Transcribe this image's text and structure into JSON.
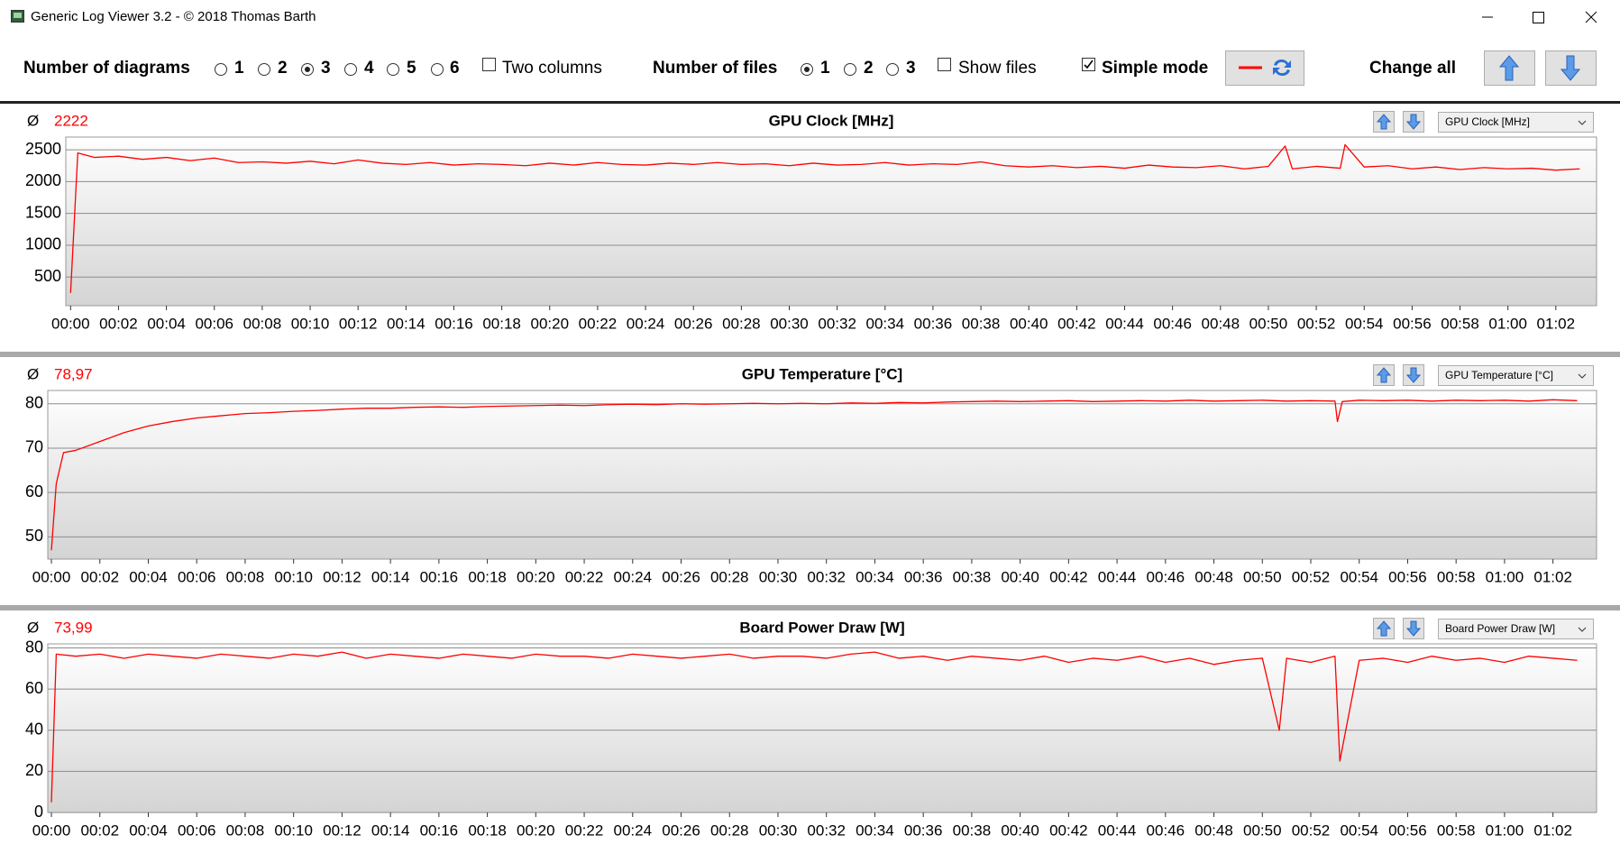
{
  "window": {
    "title": "Generic Log Viewer 3.2 - © 2018 Thomas Barth"
  },
  "toolbar": {
    "diagrams_label": "Number of diagrams",
    "diagram_options": [
      {
        "label": "1",
        "checked": false
      },
      {
        "label": "2",
        "checked": false
      },
      {
        "label": "3",
        "checked": true
      },
      {
        "label": "4",
        "checked": false
      },
      {
        "label": "5",
        "checked": false
      },
      {
        "label": "6",
        "checked": false
      }
    ],
    "two_columns": {
      "label": "Two columns",
      "checked": false
    },
    "files_label": "Number of files",
    "file_options": [
      {
        "label": "1",
        "checked": true
      },
      {
        "label": "2",
        "checked": false
      },
      {
        "label": "3",
        "checked": false
      }
    ],
    "show_files": {
      "label": "Show files",
      "checked": false
    },
    "simple_mode": {
      "label": "Simple mode",
      "checked": true
    },
    "change_all": "Change all"
  },
  "chart_data": [
    {
      "type": "line",
      "title": "GPU Clock [MHz]",
      "avg_symbol": "Ø",
      "average": "2222",
      "color": "#ff0000",
      "grid": true,
      "x": [
        0,
        0.3,
        1,
        2,
        3,
        4,
        5,
        6,
        7,
        8,
        9,
        10,
        11,
        12,
        13,
        14,
        15,
        16,
        17,
        18,
        19,
        20,
        21,
        22,
        23,
        24,
        25,
        26,
        27,
        28,
        29,
        30,
        31,
        32,
        33,
        34,
        35,
        36,
        37,
        38,
        39,
        40,
        41,
        42,
        43,
        44,
        45,
        46,
        47,
        48,
        49,
        50,
        50.7,
        51,
        52,
        53,
        53.2,
        54,
        55,
        56,
        57,
        58,
        59,
        60,
        61,
        62,
        63
      ],
      "values": [
        250,
        2450,
        2380,
        2400,
        2350,
        2380,
        2330,
        2370,
        2300,
        2310,
        2290,
        2320,
        2280,
        2340,
        2290,
        2270,
        2300,
        2260,
        2280,
        2270,
        2250,
        2290,
        2260,
        2300,
        2270,
        2260,
        2290,
        2270,
        2300,
        2270,
        2280,
        2250,
        2290,
        2260,
        2270,
        2300,
        2260,
        2280,
        2270,
        2310,
        2250,
        2230,
        2250,
        2220,
        2240,
        2210,
        2260,
        2230,
        2220,
        2250,
        2200,
        2240,
        2560,
        2200,
        2240,
        2210,
        2580,
        2230,
        2250,
        2200,
        2230,
        2190,
        2220,
        2200,
        2210,
        2180,
        2200
      ],
      "xlim": [
        -0.2,
        63.7
      ],
      "ylim": [
        50,
        2700
      ],
      "yticks": [
        500,
        1000,
        1500,
        2000,
        2500
      ],
      "xticks": [
        {
          "value": 0,
          "label": "00:00"
        },
        {
          "value": 2,
          "label": "00:02"
        },
        {
          "value": 4,
          "label": "00:04"
        },
        {
          "value": 6,
          "label": "00:06"
        },
        {
          "value": 8,
          "label": "00:08"
        },
        {
          "value": 10,
          "label": "00:10"
        },
        {
          "value": 12,
          "label": "00:12"
        },
        {
          "value": 14,
          "label": "00:14"
        },
        {
          "value": 16,
          "label": "00:16"
        },
        {
          "value": 18,
          "label": "00:18"
        },
        {
          "value": 20,
          "label": "00:20"
        },
        {
          "value": 22,
          "label": "00:22"
        },
        {
          "value": 24,
          "label": "00:24"
        },
        {
          "value": 26,
          "label": "00:26"
        },
        {
          "value": 28,
          "label": "00:28"
        },
        {
          "value": 30,
          "label": "00:30"
        },
        {
          "value": 32,
          "label": "00:32"
        },
        {
          "value": 34,
          "label": "00:34"
        },
        {
          "value": 36,
          "label": "00:36"
        },
        {
          "value": 38,
          "label": "00:38"
        },
        {
          "value": 40,
          "label": "00:40"
        },
        {
          "value": 42,
          "label": "00:42"
        },
        {
          "value": 44,
          "label": "00:44"
        },
        {
          "value": 46,
          "label": "00:46"
        },
        {
          "value": 48,
          "label": "00:48"
        },
        {
          "value": 50,
          "label": "00:50"
        },
        {
          "value": 52,
          "label": "00:52"
        },
        {
          "value": 54,
          "label": "00:54"
        },
        {
          "value": 56,
          "label": "00:56"
        },
        {
          "value": 58,
          "label": "00:58"
        },
        {
          "value": 60,
          "label": "01:00"
        },
        {
          "value": 62,
          "label": "01:02"
        }
      ]
    },
    {
      "type": "line",
      "title": "GPU Temperature [°C]",
      "avg_symbol": "Ø",
      "average": "78,97",
      "color": "#ff0000",
      "grid": true,
      "x": [
        0,
        0.2,
        0.5,
        1,
        2,
        3,
        4,
        5,
        6,
        7,
        8,
        9,
        10,
        11,
        12,
        13,
        14,
        15,
        16,
        17,
        18,
        19,
        20,
        21,
        22,
        23,
        24,
        25,
        26,
        27,
        28,
        29,
        30,
        31,
        32,
        33,
        34,
        35,
        36,
        37,
        38,
        39,
        40,
        41,
        42,
        43,
        44,
        45,
        46,
        47,
        48,
        49,
        50,
        51,
        52,
        53,
        53.1,
        53.3,
        54,
        55,
        56,
        57,
        58,
        59,
        60,
        61,
        62,
        63
      ],
      "values": [
        47,
        62,
        69,
        69.5,
        71.5,
        73.5,
        75,
        76,
        76.8,
        77.3,
        77.8,
        78,
        78.3,
        78.5,
        78.8,
        79,
        79,
        79.2,
        79.3,
        79.2,
        79.4,
        79.5,
        79.6,
        79.7,
        79.6,
        79.8,
        79.9,
        79.8,
        80,
        79.9,
        80,
        80.1,
        80,
        80.1,
        80,
        80.2,
        80.1,
        80.3,
        80.2,
        80.4,
        80.5,
        80.6,
        80.5,
        80.6,
        80.7,
        80.5,
        80.6,
        80.7,
        80.6,
        80.8,
        80.6,
        80.7,
        80.8,
        80.6,
        80.7,
        80.6,
        76,
        80.5,
        80.8,
        80.7,
        80.8,
        80.6,
        80.8,
        80.7,
        80.8,
        80.6,
        80.9,
        80.7
      ],
      "xlim": [
        -0.15,
        63.8
      ],
      "ylim": [
        45,
        83
      ],
      "yticks": [
        50,
        60,
        70,
        80
      ],
      "xticks": [
        {
          "value": 0,
          "label": "00:00"
        },
        {
          "value": 2,
          "label": "00:02"
        },
        {
          "value": 4,
          "label": "00:04"
        },
        {
          "value": 6,
          "label": "00:06"
        },
        {
          "value": 8,
          "label": "00:08"
        },
        {
          "value": 10,
          "label": "00:10"
        },
        {
          "value": 12,
          "label": "00:12"
        },
        {
          "value": 14,
          "label": "00:14"
        },
        {
          "value": 16,
          "label": "00:16"
        },
        {
          "value": 18,
          "label": "00:18"
        },
        {
          "value": 20,
          "label": "00:20"
        },
        {
          "value": 22,
          "label": "00:22"
        },
        {
          "value": 24,
          "label": "00:24"
        },
        {
          "value": 26,
          "label": "00:26"
        },
        {
          "value": 28,
          "label": "00:28"
        },
        {
          "value": 30,
          "label": "00:30"
        },
        {
          "value": 32,
          "label": "00:32"
        },
        {
          "value": 34,
          "label": "00:34"
        },
        {
          "value": 36,
          "label": "00:36"
        },
        {
          "value": 38,
          "label": "00:38"
        },
        {
          "value": 40,
          "label": "00:40"
        },
        {
          "value": 42,
          "label": "00:42"
        },
        {
          "value": 44,
          "label": "00:44"
        },
        {
          "value": 46,
          "label": "00:46"
        },
        {
          "value": 48,
          "label": "00:48"
        },
        {
          "value": 50,
          "label": "00:50"
        },
        {
          "value": 52,
          "label": "00:52"
        },
        {
          "value": 54,
          "label": "00:54"
        },
        {
          "value": 56,
          "label": "00:56"
        },
        {
          "value": 58,
          "label": "00:58"
        },
        {
          "value": 60,
          "label": "01:00"
        },
        {
          "value": 62,
          "label": "01:02"
        }
      ]
    },
    {
      "type": "line",
      "title": "Board Power Draw [W]",
      "avg_symbol": "Ø",
      "average": "73,99",
      "color": "#ff0000",
      "grid": true,
      "x": [
        0,
        0.2,
        1,
        2,
        3,
        4,
        5,
        6,
        7,
        8,
        9,
        10,
        11,
        12,
        13,
        14,
        15,
        16,
        17,
        18,
        19,
        20,
        21,
        22,
        23,
        24,
        25,
        26,
        27,
        28,
        29,
        30,
        31,
        32,
        33,
        34,
        35,
        36,
        37,
        38,
        39,
        40,
        41,
        42,
        43,
        44,
        45,
        46,
        47,
        48,
        49,
        50,
        50.7,
        51,
        52,
        53,
        53.2,
        54,
        55,
        56,
        57,
        58,
        59,
        60,
        61,
        62,
        63
      ],
      "values": [
        5,
        77,
        76,
        77,
        75,
        77,
        76,
        75,
        77,
        76,
        75,
        77,
        76,
        78,
        75,
        77,
        76,
        75,
        77,
        76,
        75,
        77,
        76,
        76,
        75,
        77,
        76,
        75,
        76,
        77,
        75,
        76,
        76,
        75,
        77,
        78,
        75,
        76,
        74,
        76,
        75,
        74,
        76,
        73,
        75,
        74,
        76,
        73,
        75,
        72,
        74,
        75,
        40,
        75,
        73,
        76,
        25,
        74,
        75,
        73,
        76,
        74,
        75,
        73,
        76,
        75,
        74
      ],
      "xlim": [
        -0.15,
        63.8
      ],
      "ylim": [
        0,
        82
      ],
      "yticks": [
        0,
        20,
        40,
        60,
        80
      ],
      "xticks": [
        {
          "value": 0,
          "label": "00:00"
        },
        {
          "value": 2,
          "label": "00:02"
        },
        {
          "value": 4,
          "label": "00:04"
        },
        {
          "value": 6,
          "label": "00:06"
        },
        {
          "value": 8,
          "label": "00:08"
        },
        {
          "value": 10,
          "label": "00:10"
        },
        {
          "value": 12,
          "label": "00:12"
        },
        {
          "value": 14,
          "label": "00:14"
        },
        {
          "value": 16,
          "label": "00:16"
        },
        {
          "value": 18,
          "label": "00:18"
        },
        {
          "value": 20,
          "label": "00:20"
        },
        {
          "value": 22,
          "label": "00:22"
        },
        {
          "value": 24,
          "label": "00:24"
        },
        {
          "value": 26,
          "label": "00:26"
        },
        {
          "value": 28,
          "label": "00:28"
        },
        {
          "value": 30,
          "label": "00:30"
        },
        {
          "value": 32,
          "label": "00:32"
        },
        {
          "value": 34,
          "label": "00:34"
        },
        {
          "value": 36,
          "label": "00:36"
        },
        {
          "value": 38,
          "label": "00:38"
        },
        {
          "value": 40,
          "label": "00:40"
        },
        {
          "value": 42,
          "label": "00:42"
        },
        {
          "value": 44,
          "label": "00:44"
        },
        {
          "value": 46,
          "label": "00:46"
        },
        {
          "value": 48,
          "label": "00:48"
        },
        {
          "value": 50,
          "label": "00:50"
        },
        {
          "value": 52,
          "label": "00:52"
        },
        {
          "value": 54,
          "label": "00:54"
        },
        {
          "value": 56,
          "label": "00:56"
        },
        {
          "value": 58,
          "label": "00:58"
        },
        {
          "value": 60,
          "label": "01:00"
        },
        {
          "value": 62,
          "label": "01:02"
        }
      ]
    }
  ]
}
